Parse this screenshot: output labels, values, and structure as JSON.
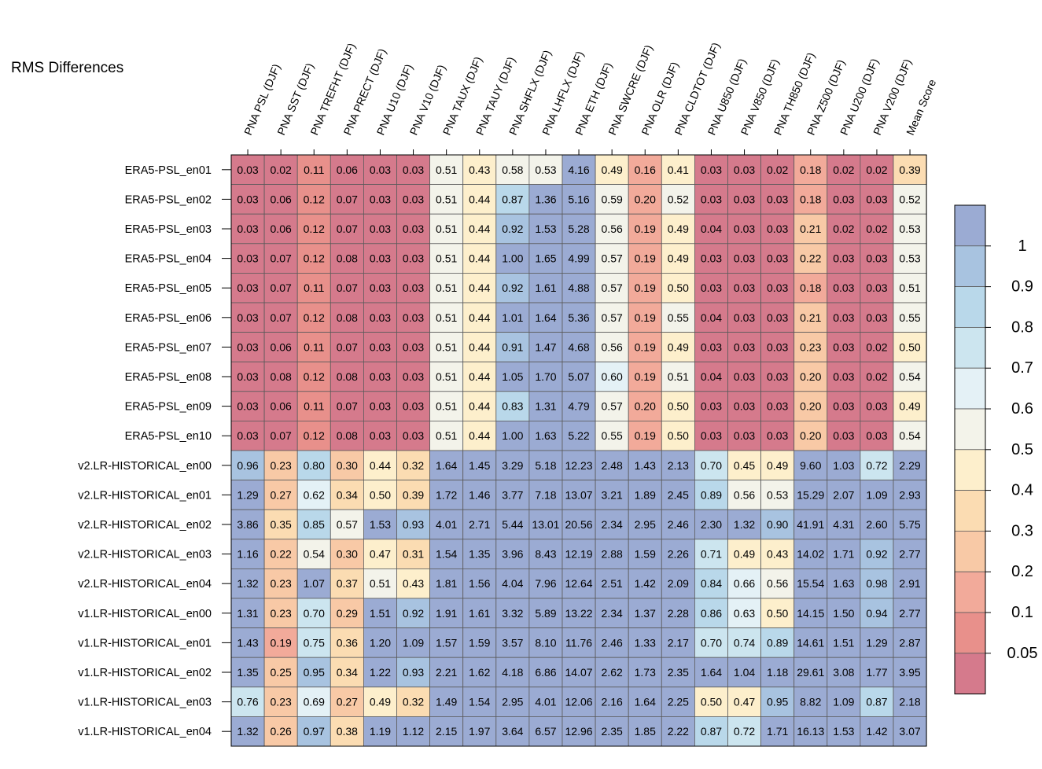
{
  "chart_data": {
    "type": "heatmap",
    "title": "RMS Differences",
    "columns": [
      "PNA PSL (DJF)",
      "PNA SST (DJF)",
      "PNA TREFHT (DJF)",
      "PNA PRECT (DJF)",
      "PNA U10 (DJF)",
      "PNA V10 (DJF)",
      "PNA TAUX (DJF)",
      "PNA TAUY (DJF)",
      "PNA SHFLX (DJF)",
      "PNA LHFLX (DJF)",
      "PNA ETH (DJF)",
      "PNA SWCRE (DJF)",
      "PNA OLR (DJF)",
      "PNA CLDTOT (DJF)",
      "PNA U850 (DJF)",
      "PNA V850 (DJF)",
      "PNA TH850 (DJF)",
      "PNA Z500 (DJF)",
      "PNA U200 (DJF)",
      "PNA V200 (DJF)",
      "Mean Score"
    ],
    "rows": [
      "ERA5-PSL_en01",
      "ERA5-PSL_en02",
      "ERA5-PSL_en03",
      "ERA5-PSL_en04",
      "ERA5-PSL_en05",
      "ERA5-PSL_en06",
      "ERA5-PSL_en07",
      "ERA5-PSL_en08",
      "ERA5-PSL_en09",
      "ERA5-PSL_en10",
      "v2.LR-HISTORICAL_en00",
      "v2.LR-HISTORICAL_en01",
      "v2.LR-HISTORICAL_en02",
      "v2.LR-HISTORICAL_en03",
      "v2.LR-HISTORICAL_en04",
      "v1.LR-HISTORICAL_en00",
      "v1.LR-HISTORICAL_en01",
      "v1.LR-HISTORICAL_en02",
      "v1.LR-HISTORICAL_en03",
      "v1.LR-HISTORICAL_en04"
    ],
    "values": [
      [
        "0.03",
        "0.02",
        "0.11",
        "0.06",
        "0.03",
        "0.03",
        "0.51",
        "0.43",
        "0.58",
        "0.53",
        "4.16",
        "0.49",
        "0.16",
        "0.41",
        "0.03",
        "0.03",
        "0.02",
        "0.18",
        "0.02",
        "0.02",
        "0.39"
      ],
      [
        "0.03",
        "0.06",
        "0.12",
        "0.07",
        "0.03",
        "0.03",
        "0.51",
        "0.44",
        "0.87",
        "1.36",
        "5.16",
        "0.59",
        "0.20",
        "0.52",
        "0.03",
        "0.03",
        "0.03",
        "0.18",
        "0.03",
        "0.03",
        "0.52"
      ],
      [
        "0.03",
        "0.06",
        "0.12",
        "0.07",
        "0.03",
        "0.03",
        "0.51",
        "0.44",
        "0.92",
        "1.53",
        "5.28",
        "0.56",
        "0.19",
        "0.49",
        "0.04",
        "0.03",
        "0.03",
        "0.21",
        "0.02",
        "0.02",
        "0.53"
      ],
      [
        "0.03",
        "0.07",
        "0.12",
        "0.08",
        "0.03",
        "0.03",
        "0.51",
        "0.44",
        "1.00",
        "1.65",
        "4.99",
        "0.57",
        "0.19",
        "0.49",
        "0.03",
        "0.03",
        "0.03",
        "0.22",
        "0.03",
        "0.03",
        "0.53"
      ],
      [
        "0.03",
        "0.07",
        "0.11",
        "0.07",
        "0.03",
        "0.03",
        "0.51",
        "0.44",
        "0.92",
        "1.61",
        "4.88",
        "0.57",
        "0.19",
        "0.50",
        "0.03",
        "0.03",
        "0.03",
        "0.18",
        "0.03",
        "0.03",
        "0.51"
      ],
      [
        "0.03",
        "0.07",
        "0.12",
        "0.08",
        "0.03",
        "0.03",
        "0.51",
        "0.44",
        "1.01",
        "1.64",
        "5.36",
        "0.57",
        "0.19",
        "0.55",
        "0.04",
        "0.03",
        "0.03",
        "0.21",
        "0.03",
        "0.03",
        "0.55"
      ],
      [
        "0.03",
        "0.06",
        "0.11",
        "0.07",
        "0.03",
        "0.03",
        "0.51",
        "0.44",
        "0.91",
        "1.47",
        "4.68",
        "0.56",
        "0.19",
        "0.49",
        "0.03",
        "0.03",
        "0.03",
        "0.23",
        "0.03",
        "0.02",
        "0.50"
      ],
      [
        "0.03",
        "0.08",
        "0.12",
        "0.08",
        "0.03",
        "0.03",
        "0.51",
        "0.44",
        "1.05",
        "1.70",
        "5.07",
        "0.60",
        "0.19",
        "0.51",
        "0.04",
        "0.03",
        "0.03",
        "0.20",
        "0.03",
        "0.02",
        "0.54"
      ],
      [
        "0.03",
        "0.06",
        "0.11",
        "0.07",
        "0.03",
        "0.03",
        "0.51",
        "0.44",
        "0.83",
        "1.31",
        "4.79",
        "0.57",
        "0.20",
        "0.50",
        "0.03",
        "0.03",
        "0.03",
        "0.20",
        "0.03",
        "0.03",
        "0.49"
      ],
      [
        "0.03",
        "0.07",
        "0.12",
        "0.08",
        "0.03",
        "0.03",
        "0.51",
        "0.44",
        "1.00",
        "1.63",
        "5.22",
        "0.55",
        "0.19",
        "0.50",
        "0.03",
        "0.03",
        "0.03",
        "0.20",
        "0.03",
        "0.03",
        "0.54"
      ],
      [
        "0.96",
        "0.23",
        "0.80",
        "0.30",
        "0.44",
        "0.32",
        "1.64",
        "1.45",
        "3.29",
        "5.18",
        "12.23",
        "2.48",
        "1.43",
        "2.13",
        "0.70",
        "0.45",
        "0.49",
        "9.60",
        "1.03",
        "0.72",
        "2.29"
      ],
      [
        "1.29",
        "0.27",
        "0.62",
        "0.34",
        "0.50",
        "0.39",
        "1.72",
        "1.46",
        "3.77",
        "7.18",
        "13.07",
        "3.21",
        "1.89",
        "2.45",
        "0.89",
        "0.56",
        "0.53",
        "15.29",
        "2.07",
        "1.09",
        "2.93"
      ],
      [
        "3.86",
        "0.35",
        "0.85",
        "0.57",
        "1.53",
        "0.93",
        "4.01",
        "2.71",
        "5.44",
        "13.01",
        "20.56",
        "2.34",
        "2.95",
        "2.46",
        "2.30",
        "1.32",
        "0.90",
        "41.91",
        "4.31",
        "2.60",
        "5.75"
      ],
      [
        "1.16",
        "0.22",
        "0.54",
        "0.30",
        "0.47",
        "0.31",
        "1.54",
        "1.35",
        "3.96",
        "8.43",
        "12.19",
        "2.88",
        "1.59",
        "2.26",
        "0.71",
        "0.49",
        "0.43",
        "14.02",
        "1.71",
        "0.92",
        "2.77"
      ],
      [
        "1.32",
        "0.23",
        "1.07",
        "0.37",
        "0.51",
        "0.43",
        "1.81",
        "1.56",
        "4.04",
        "7.96",
        "12.64",
        "2.51",
        "1.42",
        "2.09",
        "0.84",
        "0.66",
        "0.56",
        "15.54",
        "1.63",
        "0.98",
        "2.91"
      ],
      [
        "1.31",
        "0.23",
        "0.70",
        "0.29",
        "1.51",
        "0.92",
        "1.91",
        "1.61",
        "3.32",
        "5.89",
        "13.22",
        "2.34",
        "1.37",
        "2.28",
        "0.86",
        "0.63",
        "0.50",
        "14.15",
        "1.50",
        "0.94",
        "2.77"
      ],
      [
        "1.43",
        "0.19",
        "0.75",
        "0.36",
        "1.20",
        "1.09",
        "1.57",
        "1.59",
        "3.57",
        "8.10",
        "11.76",
        "2.46",
        "1.33",
        "2.17",
        "0.70",
        "0.74",
        "0.89",
        "14.61",
        "1.51",
        "1.29",
        "2.87"
      ],
      [
        "1.35",
        "0.25",
        "0.95",
        "0.34",
        "1.22",
        "0.93",
        "2.21",
        "1.62",
        "4.18",
        "6.86",
        "14.07",
        "2.62",
        "1.73",
        "2.35",
        "1.64",
        "1.04",
        "1.18",
        "29.61",
        "3.08",
        "1.77",
        "3.95"
      ],
      [
        "0.76",
        "0.23",
        "0.69",
        "0.27",
        "0.49",
        "0.32",
        "1.49",
        "1.54",
        "2.95",
        "4.01",
        "12.06",
        "2.16",
        "1.64",
        "2.25",
        "0.50",
        "0.47",
        "0.95",
        "8.82",
        "1.09",
        "0.87",
        "2.18"
      ],
      [
        "1.32",
        "0.26",
        "0.97",
        "0.38",
        "1.19",
        "1.12",
        "2.15",
        "1.97",
        "3.64",
        "6.57",
        "12.96",
        "2.35",
        "1.85",
        "2.22",
        "0.87",
        "0.72",
        "1.71",
        "16.13",
        "1.53",
        "1.42",
        "3.07"
      ]
    ],
    "color_index": [
      [
        0,
        0,
        1,
        0,
        0,
        0,
        6,
        5,
        6,
        6,
        11,
        5,
        2,
        5,
        0,
        0,
        0,
        2,
        0,
        0,
        4
      ],
      [
        0,
        0,
        1,
        0,
        0,
        0,
        6,
        5,
        9,
        11,
        11,
        6,
        2,
        6,
        0,
        0,
        0,
        2,
        0,
        0,
        6
      ],
      [
        0,
        0,
        1,
        0,
        0,
        0,
        6,
        5,
        10,
        11,
        11,
        6,
        2,
        5,
        0,
        0,
        0,
        3,
        0,
        0,
        6
      ],
      [
        0,
        0,
        1,
        0,
        0,
        0,
        6,
        5,
        11,
        11,
        11,
        6,
        2,
        5,
        0,
        0,
        0,
        3,
        0,
        0,
        6
      ],
      [
        0,
        0,
        1,
        0,
        0,
        0,
        6,
        5,
        10,
        11,
        11,
        6,
        2,
        5,
        0,
        0,
        0,
        2,
        0,
        0,
        6
      ],
      [
        0,
        0,
        1,
        0,
        0,
        0,
        6,
        5,
        11,
        11,
        11,
        6,
        2,
        6,
        0,
        0,
        0,
        3,
        0,
        0,
        6
      ],
      [
        0,
        0,
        1,
        0,
        0,
        0,
        6,
        5,
        10,
        11,
        11,
        6,
        2,
        5,
        0,
        0,
        0,
        3,
        0,
        0,
        5
      ],
      [
        0,
        0,
        1,
        0,
        0,
        0,
        6,
        5,
        11,
        11,
        11,
        7,
        2,
        6,
        0,
        0,
        0,
        3,
        0,
        0,
        6
      ],
      [
        0,
        0,
        1,
        0,
        0,
        0,
        6,
        5,
        9,
        11,
        11,
        6,
        2,
        5,
        0,
        0,
        0,
        3,
        0,
        0,
        5
      ],
      [
        0,
        0,
        1,
        0,
        0,
        0,
        6,
        5,
        11,
        11,
        11,
        6,
        2,
        5,
        0,
        0,
        0,
        3,
        0,
        0,
        6
      ],
      [
        10,
        3,
        9,
        3,
        5,
        4,
        11,
        11,
        11,
        11,
        11,
        11,
        11,
        11,
        8,
        5,
        5,
        11,
        11,
        8,
        11
      ],
      [
        11,
        3,
        7,
        4,
        5,
        4,
        11,
        11,
        11,
        11,
        11,
        11,
        11,
        11,
        9,
        6,
        6,
        11,
        11,
        11,
        11
      ],
      [
        11,
        4,
        9,
        6,
        11,
        10,
        11,
        11,
        11,
        11,
        11,
        11,
        11,
        11,
        11,
        11,
        10,
        11,
        11,
        11,
        11
      ],
      [
        11,
        3,
        6,
        3,
        5,
        4,
        11,
        11,
        11,
        11,
        11,
        11,
        11,
        11,
        8,
        5,
        5,
        11,
        11,
        10,
        11
      ],
      [
        11,
        3,
        11,
        4,
        6,
        5,
        11,
        11,
        11,
        11,
        11,
        11,
        11,
        11,
        9,
        7,
        6,
        11,
        11,
        10,
        11
      ],
      [
        11,
        3,
        8,
        3,
        11,
        10,
        11,
        11,
        11,
        11,
        11,
        11,
        11,
        11,
        9,
        7,
        5,
        11,
        11,
        10,
        11
      ],
      [
        11,
        2,
        8,
        4,
        11,
        11,
        11,
        11,
        11,
        11,
        11,
        11,
        11,
        11,
        8,
        8,
        9,
        11,
        11,
        11,
        11
      ],
      [
        11,
        3,
        10,
        4,
        11,
        10,
        11,
        11,
        11,
        11,
        11,
        11,
        11,
        11,
        11,
        11,
        11,
        11,
        11,
        11,
        11
      ],
      [
        8,
        3,
        7,
        3,
        5,
        4,
        11,
        11,
        11,
        11,
        11,
        11,
        11,
        11,
        5,
        5,
        10,
        11,
        11,
        9,
        11
      ],
      [
        11,
        3,
        10,
        4,
        11,
        11,
        11,
        11,
        11,
        11,
        11,
        11,
        11,
        11,
        9,
        8,
        11,
        11,
        11,
        11,
        11
      ]
    ],
    "palette": [
      "#D57A8C",
      "#E8908B",
      "#F2AA9A",
      "#F8C9A6",
      "#FBDCB2",
      "#FDEFCC",
      "#F3F3EA",
      "#E4F1F6",
      "#CCE5EF",
      "#B9D8EA",
      "#A8C3E0",
      "#9BABD3"
    ],
    "colorbar": {
      "labels": [
        "1",
        "0.9",
        "0.8",
        "0.7",
        "0.6",
        "0.5",
        "0.4",
        "0.3",
        "0.2",
        "0.1",
        "0.05"
      ]
    }
  }
}
